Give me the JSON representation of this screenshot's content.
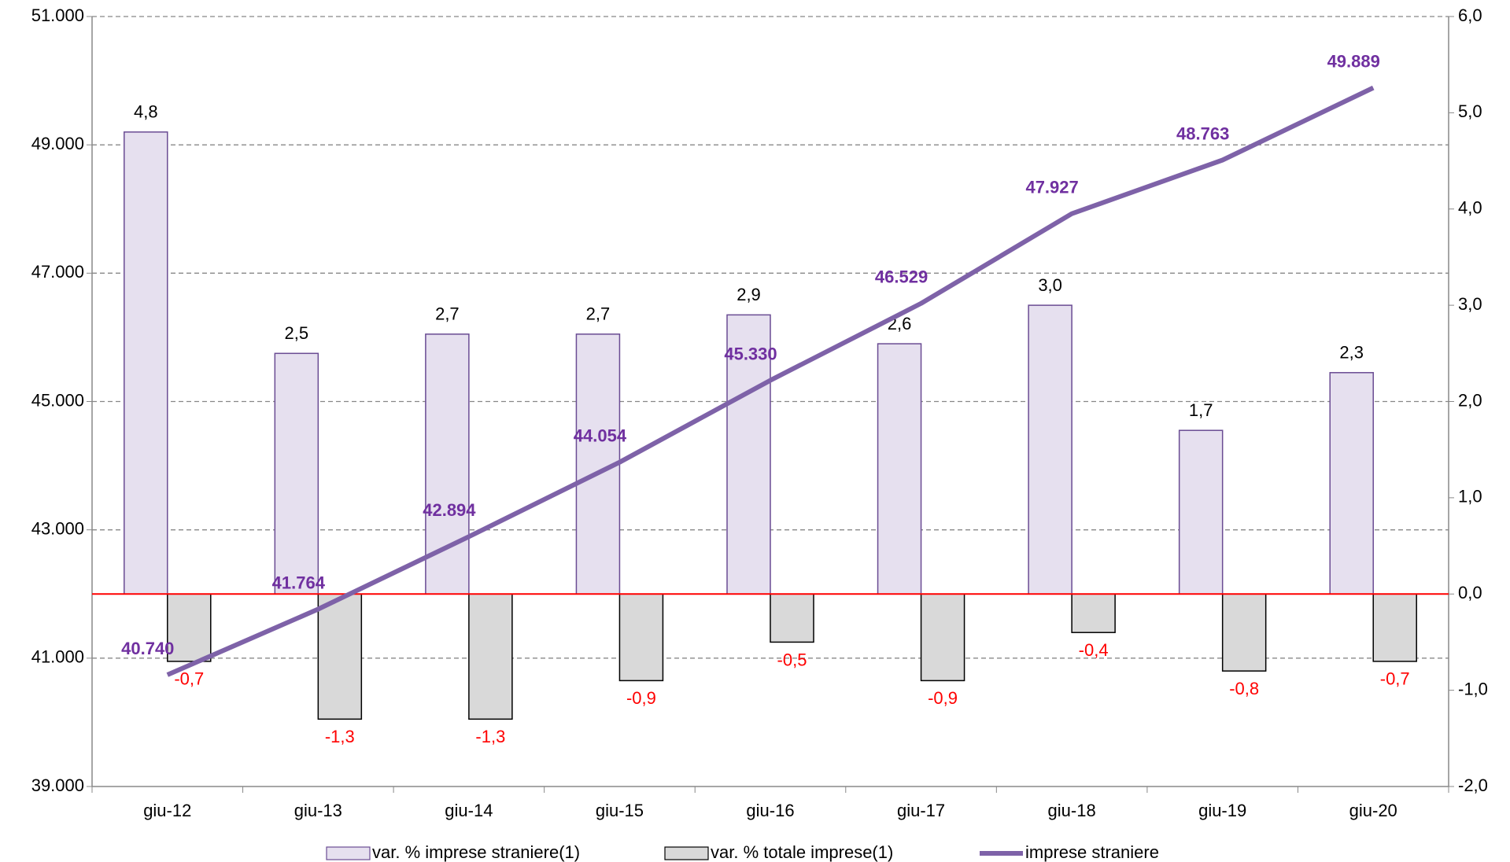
{
  "chart_data": {
    "type": "bar",
    "categories": [
      "giu-12",
      "giu-13",
      "giu-14",
      "giu-15",
      "giu-16",
      "giu-17",
      "giu-18",
      "giu-19",
      "giu-20"
    ],
    "series": [
      {
        "name": "var. % imprese straniere(1)",
        "type": "bar",
        "axis": "y2",
        "color": "#e6e0ef",
        "stroke": "#6a4c93",
        "label_color": "#000000",
        "values": [
          4.8,
          2.5,
          2.7,
          2.7,
          2.9,
          2.6,
          3.0,
          1.7,
          2.3
        ],
        "value_labels": [
          "4,8",
          "2,5",
          "2,7",
          "2,7",
          "2,9",
          "2,6",
          "3,0",
          "1,7",
          "2,3"
        ]
      },
      {
        "name": "var. % totale imprese(1)",
        "type": "bar",
        "axis": "y2",
        "color": "#d9d9d9",
        "stroke": "#000000",
        "label_color": "#ff0000",
        "values": [
          -0.7,
          -1.3,
          -1.3,
          -0.9,
          -0.5,
          -0.9,
          -0.4,
          -0.8,
          -0.7
        ],
        "value_labels": [
          "-0,7",
          "-1,3",
          "-1,3",
          "-0,9",
          "-0,5",
          "-0,9",
          "-0,4",
          "-0,8",
          "-0,7"
        ]
      },
      {
        "name": "imprese straniere",
        "type": "line",
        "axis": "y",
        "color": "#7e62a8",
        "label_color": "#7030a0",
        "values": [
          40740,
          41764,
          42894,
          44054,
          45330,
          46529,
          47927,
          48763,
          49889
        ],
        "value_labels": [
          "40.740",
          "41.764",
          "42.894",
          "44.054",
          "45.330",
          "46.529",
          "47.927",
          "48.763",
          "49.889"
        ]
      }
    ],
    "ylim": [
      39000,
      51000
    ],
    "yticks": [
      {
        "value": 39000,
        "label": "39.000"
      },
      {
        "value": 41000,
        "label": "41.000"
      },
      {
        "value": 43000,
        "label": "43.000"
      },
      {
        "value": 45000,
        "label": "45.000"
      },
      {
        "value": 47000,
        "label": "47.000"
      },
      {
        "value": 49000,
        "label": "49.000"
      },
      {
        "value": 51000,
        "label": "51.000"
      }
    ],
    "y2lim": [
      -2,
      6
    ],
    "y2ticks": [
      {
        "value": -2,
        "label": "-2,0"
      },
      {
        "value": -1,
        "label": "-1,0"
      },
      {
        "value": 0,
        "label": "0,0"
      },
      {
        "value": 1,
        "label": "1,0"
      },
      {
        "value": 2,
        "label": "2,0"
      },
      {
        "value": 3,
        "label": "3,0"
      },
      {
        "value": 4,
        "label": "4,0"
      },
      {
        "value": 5,
        "label": "5,0"
      },
      {
        "value": 6,
        "label": "6,0"
      }
    ],
    "grid": true,
    "zero_line_color": "#ff0000",
    "legend": "bottom"
  }
}
